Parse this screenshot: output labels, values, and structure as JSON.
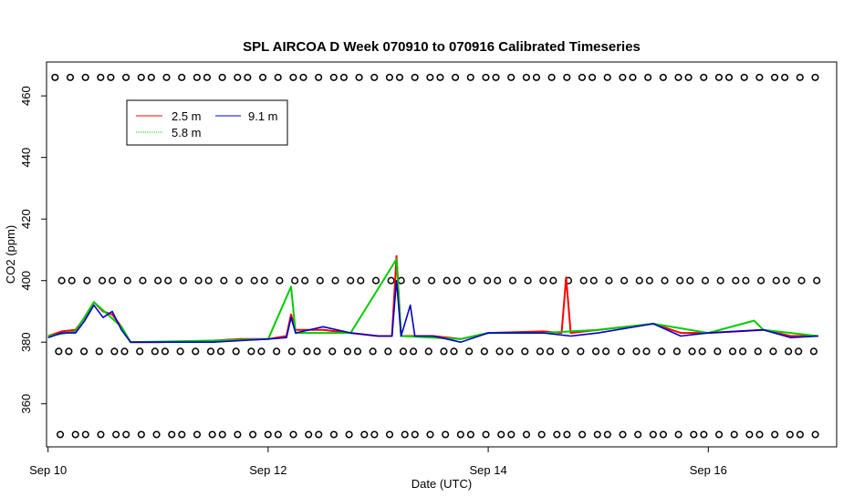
{
  "chart_data": {
    "type": "line",
    "title": "SPL AIRCOA D  Week 070910 to 070916  Calibrated Timeseries",
    "xlabel": "Date (UTC)",
    "ylabel": "CO2 (ppm)",
    "xlim": [
      "2007-09-09T23:40",
      "2007-09-17T04:00"
    ],
    "ylim": [
      346,
      471
    ],
    "x_ticks": [
      {
        "t": "2007-09-10T00:00",
        "label": "Sep 10"
      },
      {
        "t": "2007-09-12T00:00",
        "label": "Sep 12"
      },
      {
        "t": "2007-09-14T00:00",
        "label": "Sep 14"
      },
      {
        "t": "2007-09-16T00:00",
        "label": "Sep 16"
      }
    ],
    "y_ticks": [
      360,
      380,
      400,
      420,
      440,
      460
    ],
    "legend_position": "top-left",
    "series": [
      {
        "name": "2.5 m",
        "color": "#ff0000",
        "points": [
          [
            "2007-09-10T00:00",
            382
          ],
          [
            "2007-09-10T03:00",
            383.5
          ],
          [
            "2007-09-10T06:00",
            384
          ],
          [
            "2007-09-10T08:00",
            388
          ],
          [
            "2007-09-10T10:00",
            393
          ],
          [
            "2007-09-10T12:00",
            390
          ],
          [
            "2007-09-10T14:00",
            389
          ],
          [
            "2007-09-10T16:00",
            385
          ],
          [
            "2007-09-10T18:00",
            380
          ],
          [
            "2007-09-11T00:00",
            380
          ],
          [
            "2007-09-11T12:00",
            380.5
          ],
          [
            "2007-09-11T18:00",
            381
          ],
          [
            "2007-09-12T00:00",
            381
          ],
          [
            "2007-09-12T04:00",
            382
          ],
          [
            "2007-09-12T05:00",
            389
          ],
          [
            "2007-09-12T06:00",
            384
          ],
          [
            "2007-09-12T12:00",
            384
          ],
          [
            "2007-09-12T18:00",
            383
          ],
          [
            "2007-09-13T00:00",
            382
          ],
          [
            "2007-09-13T03:00",
            382
          ],
          [
            "2007-09-13T04:00",
            408
          ],
          [
            "2007-09-13T05:00",
            382
          ],
          [
            "2007-09-13T12:00",
            382
          ],
          [
            "2007-09-13T18:00",
            381
          ],
          [
            "2007-09-14T00:00",
            383
          ],
          [
            "2007-09-14T12:00",
            383.5
          ],
          [
            "2007-09-14T16:00",
            383
          ],
          [
            "2007-09-14T17:00",
            401
          ],
          [
            "2007-09-14T18:00",
            383
          ],
          [
            "2007-09-15T00:00",
            384
          ],
          [
            "2007-09-15T12:00",
            386
          ],
          [
            "2007-09-15T18:00",
            383
          ],
          [
            "2007-09-16T00:00",
            383
          ],
          [
            "2007-09-16T12:00",
            384
          ],
          [
            "2007-09-16T18:00",
            382
          ],
          [
            "2007-09-17T00:00",
            382
          ]
        ]
      },
      {
        "name": "5.8 m",
        "color": "#00cc00",
        "points": [
          [
            "2007-09-10T00:00",
            382
          ],
          [
            "2007-09-10T06:00",
            383.5
          ],
          [
            "2007-09-10T10:00",
            393
          ],
          [
            "2007-09-10T16:00",
            385
          ],
          [
            "2007-09-10T18:00",
            380
          ],
          [
            "2007-09-11T12:00",
            380.5
          ],
          [
            "2007-09-12T00:00",
            381
          ],
          [
            "2007-09-12T05:00",
            398
          ],
          [
            "2007-09-12T06:00",
            383
          ],
          [
            "2007-09-12T18:00",
            383
          ],
          [
            "2007-09-13T04:00",
            407
          ],
          [
            "2007-09-13T05:00",
            382
          ],
          [
            "2007-09-13T18:00",
            381
          ],
          [
            "2007-09-14T00:00",
            383
          ],
          [
            "2007-09-14T12:00",
            383
          ],
          [
            "2007-09-15T00:00",
            384
          ],
          [
            "2007-09-15T12:00",
            386
          ],
          [
            "2007-09-16T00:00",
            383
          ],
          [
            "2007-09-16T10:00",
            387
          ],
          [
            "2007-09-16T12:00",
            384
          ],
          [
            "2007-09-17T00:00",
            382
          ]
        ]
      },
      {
        "name": "9.1 m",
        "color": "#0000cc",
        "points": [
          [
            "2007-09-10T00:00",
            381.5
          ],
          [
            "2007-09-10T03:00",
            383
          ],
          [
            "2007-09-10T06:00",
            383
          ],
          [
            "2007-09-10T08:00",
            387
          ],
          [
            "2007-09-10T10:00",
            392
          ],
          [
            "2007-09-10T12:00",
            388
          ],
          [
            "2007-09-10T14:00",
            390
          ],
          [
            "2007-09-10T16:00",
            384
          ],
          [
            "2007-09-10T18:00",
            380
          ],
          [
            "2007-09-11T00:00",
            380
          ],
          [
            "2007-09-11T12:00",
            380
          ],
          [
            "2007-09-11T18:00",
            380.5
          ],
          [
            "2007-09-12T00:00",
            381
          ],
          [
            "2007-09-12T04:00",
            381.5
          ],
          [
            "2007-09-12T05:00",
            388
          ],
          [
            "2007-09-12T06:00",
            383
          ],
          [
            "2007-09-12T12:00",
            385
          ],
          [
            "2007-09-12T18:00",
            383
          ],
          [
            "2007-09-13T00:00",
            382
          ],
          [
            "2007-09-13T03:00",
            382
          ],
          [
            "2007-09-13T04:00",
            400
          ],
          [
            "2007-09-13T05:00",
            382
          ],
          [
            "2007-09-13T07:00",
            392
          ],
          [
            "2007-09-13T08:00",
            382
          ],
          [
            "2007-09-13T12:00",
            382
          ],
          [
            "2007-09-13T18:00",
            380
          ],
          [
            "2007-09-14T00:00",
            383
          ],
          [
            "2007-09-14T12:00",
            383
          ],
          [
            "2007-09-14T18:00",
            382
          ],
          [
            "2007-09-15T00:00",
            383
          ],
          [
            "2007-09-15T12:00",
            386
          ],
          [
            "2007-09-15T18:00",
            382
          ],
          [
            "2007-09-16T00:00",
            383
          ],
          [
            "2007-09-16T12:00",
            384
          ],
          [
            "2007-09-16T18:00",
            381.5
          ],
          [
            "2007-09-17T00:00",
            382
          ]
        ]
      }
    ],
    "flag_rows": {
      "marker": "o",
      "color": "#000000",
      "y_levels": [
        466,
        400,
        377,
        350
      ]
    }
  }
}
